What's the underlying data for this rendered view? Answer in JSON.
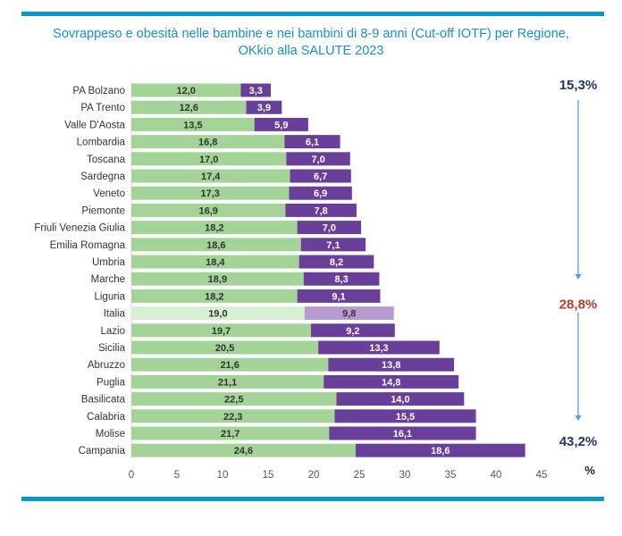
{
  "header": {
    "title_line1": "Sovrappeso e obesità nelle bambine e nei bambini di 8-9 anni (Cut-off IOTF) per Regione,",
    "title_line2": "OKkio alla SALUTE 2023"
  },
  "chart_data": {
    "type": "bar",
    "orientation": "horizontal",
    "stacked": true,
    "title": "Sovrappeso e obesità nelle bambine e nei bambini di 8-9 anni (Cut-off IOTF) per Regione, OKkio alla SALUTE 2023",
    "xlabel": "%",
    "ylabel": "",
    "xlim": [
      0,
      45
    ],
    "xticks": [
      0,
      5,
      10,
      15,
      20,
      25,
      30,
      35,
      40,
      45
    ],
    "grid": false,
    "legend": "none",
    "highlight_category": "Italia",
    "categories": [
      "PA Bolzano",
      "PA Trento",
      "Valle D'Aosta",
      "Lombardia",
      "Toscana",
      "Sardegna",
      "Veneto",
      "Piemonte",
      "Friuli Venezia Giulia",
      "Emilia Romagna",
      "Umbria",
      "Marche",
      "Liguria",
      "Italia",
      "Lazio",
      "Sicilia",
      "Abruzzo",
      "Puglia",
      "Basilicata",
      "Calabria",
      "Molise",
      "Campania"
    ],
    "series": [
      {
        "name": "Sovrappeso",
        "color": "#a3d397",
        "highlight_color": "#d9efd4",
        "values": [
          12.0,
          12.6,
          13.5,
          16.8,
          17.0,
          17.4,
          17.3,
          16.9,
          18.2,
          18.6,
          18.4,
          18.9,
          18.2,
          19.0,
          19.7,
          20.5,
          21.6,
          21.1,
          22.5,
          22.3,
          21.7,
          24.6
        ],
        "labels": [
          "12,0",
          "12,6",
          "13,5",
          "16,8",
          "17,0",
          "17,4",
          "17,3",
          "16,9",
          "18,2",
          "18,6",
          "18,4",
          "18,9",
          "18,2",
          "19,0",
          "19,7",
          "20,5",
          "21,6",
          "21,1",
          "22,5",
          "22,3",
          "21,7",
          "24,6"
        ]
      },
      {
        "name": "Obesità",
        "color": "#6a3f9a",
        "highlight_color": "#b99ad0",
        "values": [
          3.3,
          3.9,
          5.9,
          6.1,
          7.0,
          6.7,
          6.9,
          7.8,
          7.0,
          7.1,
          8.2,
          8.3,
          9.1,
          9.8,
          9.2,
          13.3,
          13.8,
          14.8,
          14.0,
          15.5,
          16.1,
          18.6
        ],
        "labels": [
          "3,3",
          "3,9",
          "5,9",
          "6,1",
          "7,0",
          "6,7",
          "6,9",
          "7,8",
          "7,0",
          "7,1",
          "8,2",
          "8,3",
          "9,1",
          "9,8",
          "9,2",
          "13,3",
          "13,8",
          "14,8",
          "14,0",
          "15,5",
          "16,1",
          "18,6"
        ]
      }
    ],
    "annotations": [
      {
        "text": "15,3%",
        "anchor_category": "PA Bolzano",
        "color": "#1f3864"
      },
      {
        "text": "28,8%",
        "anchor_category": "Italia",
        "color": "#c0392b"
      },
      {
        "text": "43,2%",
        "anchor_category": "Campania",
        "color": "#1f3864"
      }
    ],
    "arrow_color": "#5b9bd5"
  }
}
